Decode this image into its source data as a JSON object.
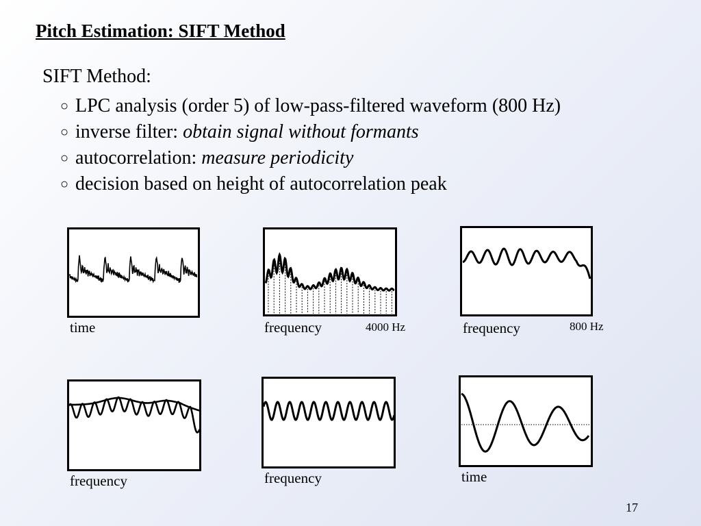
{
  "slide": {
    "title": "Pitch Estimation: SIFT Method",
    "heading": "SIFT Method:",
    "bullets": [
      {
        "text": "LPC analysis (order 5) of low-pass-filtered waveform (800 Hz)",
        "italic": ""
      },
      {
        "text": "inverse filter: ",
        "italic": "obtain signal without formants"
      },
      {
        "text": "autocorrelation: ",
        "italic": "measure periodicity"
      },
      {
        "text": "decision based on height of autocorrelation peak",
        "italic": ""
      }
    ],
    "bullet_symbol": "○",
    "page_number": "17"
  },
  "panels": {
    "labels": [
      "time",
      "frequency",
      "frequency",
      "frequency",
      "frequency",
      "time"
    ],
    "extra_labels": [
      "4000 Hz",
      "800 Hz"
    ]
  },
  "icons": {
    "bullet": "hollow-circle-bullet-icon"
  }
}
